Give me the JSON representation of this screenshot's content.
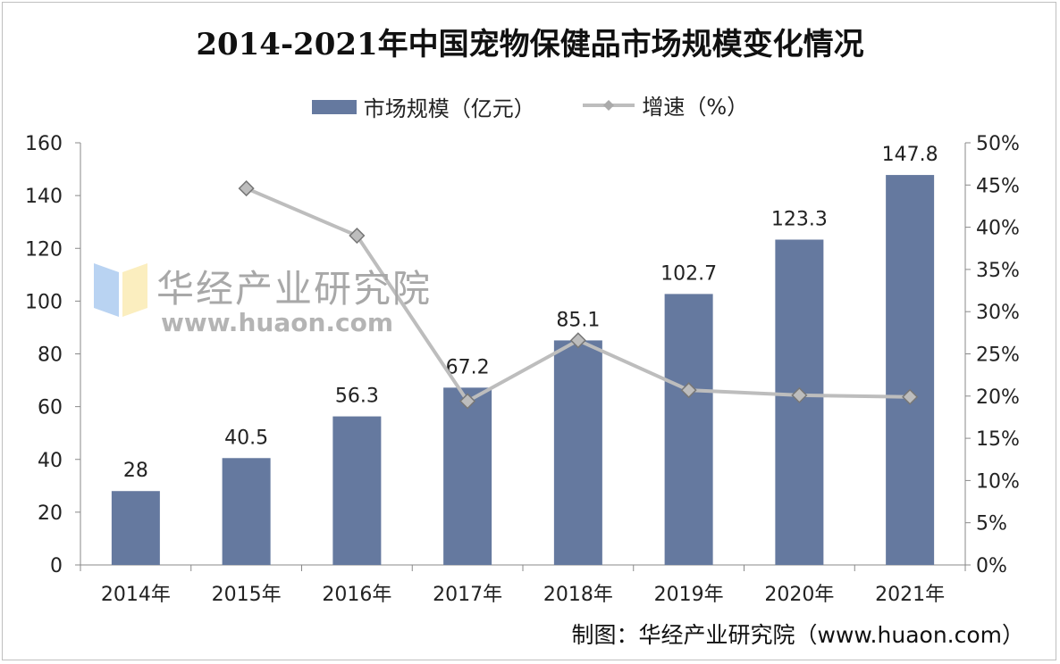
{
  "chart_data": {
    "type": "bar+line",
    "title": "2014-2021年中国宠物保健品市场规模变化情况",
    "categories": [
      "2014年",
      "2015年",
      "2016年",
      "2017年",
      "2018年",
      "2019年",
      "2020年",
      "2021年"
    ],
    "series": [
      {
        "name": "市场规模（亿元）",
        "type": "bar",
        "axis": "left",
        "values": [
          28,
          40.5,
          56.3,
          67.2,
          85.1,
          102.7,
          123.3,
          147.8
        ],
        "color": "#65799f",
        "labels": [
          "28",
          "40.5",
          "56.3",
          "67.2",
          "85.1",
          "102.7",
          "123.3",
          "147.8"
        ]
      },
      {
        "name": "增速（%）",
        "type": "line",
        "axis": "right",
        "values": [
          null,
          44.6,
          39.0,
          19.4,
          26.6,
          20.7,
          20.1,
          19.9
        ],
        "color": "#bdbdbd",
        "marker": "diamond"
      }
    ],
    "y_left": {
      "range": [
        0,
        160
      ],
      "ticks": [
        "0",
        "20",
        "40",
        "60",
        "80",
        "100",
        "120",
        "140",
        "160"
      ]
    },
    "y_right": {
      "range": [
        0,
        50
      ],
      "ticks": [
        "0%",
        "5%",
        "10%",
        "15%",
        "20%",
        "25%",
        "30%",
        "35%",
        "40%",
        "45%",
        "50%"
      ]
    },
    "grid": false,
    "legend_position": "top"
  },
  "source": "制图：华经产业研究院（www.huaon.com）",
  "watermark": {
    "name": "华经产业研究院",
    "url": "www.huaon.com"
  }
}
